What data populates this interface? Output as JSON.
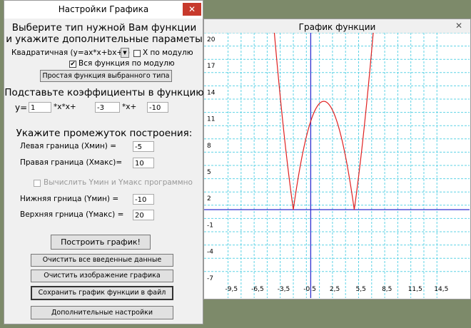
{
  "dialog": {
    "title": "Настройки Графика",
    "heading": [
      "Выберите тип нужной Вам функции",
      "и укажите дополнительные параметы"
    ],
    "function_type": "Квадратичная (y=ax*x+bx+c)",
    "abs_x": {
      "label": "X по модулю",
      "checked": false
    },
    "abs_all": {
      "label": "Вся функция по модулю",
      "checked": true
    },
    "simple_button": "Простая функция выбранного типа",
    "coef_heading": "Подставьте коэффициенты в функцию",
    "coef": {
      "y": "y=",
      "a": 1,
      "xx": "*x*x+",
      "b": -3,
      "x": "*x+",
      "c": -10
    },
    "range_heading": "Укажите промежуток построения:",
    "xmin": {
      "label": "Левая граница (Хмин) =",
      "value": -5
    },
    "xmax": {
      "label": "Правая граница (Хмакс)=",
      "value": 10
    },
    "auto_y": {
      "label": "Вычислить Yмин и Yмакс программно",
      "checked": false,
      "disabled": true
    },
    "ymin": {
      "label": "Нижняя грница (Yмин) =",
      "value": -10
    },
    "ymax": {
      "label": "Верхняя грница (Yмакс) =",
      "value": 20
    },
    "buttons": [
      "Построить график!",
      "Очистить все введенные данные",
      "Очистить изображение графика",
      "Сохранить график функции в файл",
      "Дополнительные настройки"
    ]
  },
  "graph_window": {
    "title": "График функции",
    "xlim": [
      -12.25,
      18.25
    ],
    "xticks": [
      {
        "value": -9.5,
        "label": "-9,5"
      },
      {
        "value": -6.5,
        "label": "-6,5"
      },
      {
        "value": -3.5,
        "label": "-3,5"
      },
      {
        "value": -0.5,
        "label": "-0,5"
      },
      {
        "value": 2.5,
        "label": "2,5"
      },
      {
        "value": 5.5,
        "label": "5,5"
      },
      {
        "value": 8.5,
        "label": "8,5"
      },
      {
        "value": 11.5,
        "label": "11,5"
      },
      {
        "value": 14.5,
        "label": "14,5"
      }
    ],
    "yticks": [
      20,
      17,
      14,
      11,
      8,
      5,
      2,
      -1,
      -4,
      -7
    ]
  }
}
